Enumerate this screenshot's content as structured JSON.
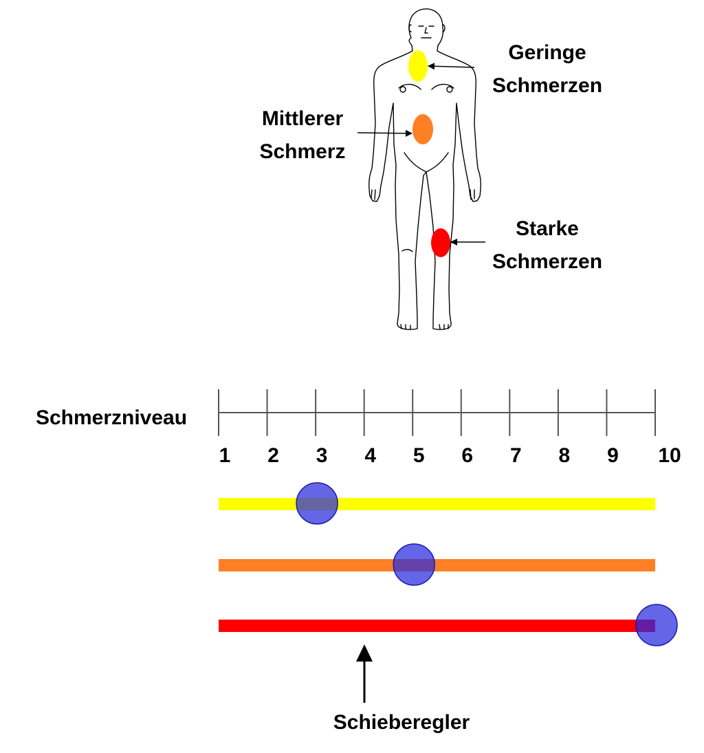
{
  "labels": {
    "mild": [
      "Geringe",
      "Schmerzen"
    ],
    "moderate": [
      "Mittlerer",
      "Schmerz"
    ],
    "severe": [
      "Starke",
      "Schmerzen"
    ],
    "scale": "Schmerzniveau",
    "slider": "Schieberegler"
  },
  "regions": {
    "mild": {
      "color": "#ffff00"
    },
    "moderate": {
      "color": "#ff7f24"
    },
    "severe": {
      "color": "#ff0000"
    }
  },
  "scale": {
    "min": 1,
    "max": 10,
    "ticks": [
      "1",
      "2",
      "3",
      "4",
      "5",
      "6",
      "7",
      "8",
      "9",
      "10"
    ]
  },
  "sliders": [
    {
      "name": "mild",
      "color": "#ffff00",
      "value": 3
    },
    {
      "name": "moderate",
      "color": "#ff7f24",
      "value": 5
    },
    {
      "name": "severe",
      "color": "#ff0000",
      "value": 10
    }
  ],
  "thumb_color": "#2a2adf"
}
